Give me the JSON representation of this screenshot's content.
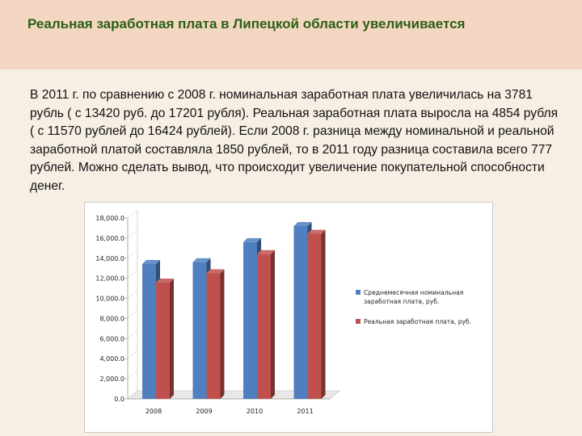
{
  "slide": {
    "title": "Реальная заработная плата в Липецкой области увеличивается",
    "body": "В 2011 г. по сравнению с 2008 г. номинальная заработная плата увеличилась на 3781 рубль ( с 13420 руб. до 17201 рубля). Реальная заработная плата выросла на 4854 рубля ( с 11570  рублей до 16424 рублей). Если  2008 г. разница между номинальной и реальной заработной платой составляла 1850 рублей, то в 2011 году разница составила всего 777 рублей. Можно сделать вывод, что происходит увеличение покупательной способности денег."
  },
  "chart_data": {
    "type": "bar",
    "style": "3d-clustered",
    "categories": [
      "2008",
      "2009",
      "2010",
      "2011"
    ],
    "series": [
      {
        "name": "Среднемесячная номинальная заработная плата, руб.",
        "values": [
          13420,
          13600,
          15600,
          17201
        ],
        "color": "#4f7fbf"
      },
      {
        "name": "Реальная заработная плата, руб.",
        "values": [
          11570,
          12500,
          14400,
          16424
        ],
        "color": "#c0504d"
      }
    ],
    "yticks": [
      "0.0",
      "2,000.0",
      "4,000.0",
      "6,000.0",
      "8,000.0",
      "10,000.0",
      "12,000.0",
      "14,000.0",
      "16,000.0",
      "18,000.0"
    ],
    "ylim": [
      0,
      18000
    ],
    "grid": false,
    "legend": "right"
  }
}
